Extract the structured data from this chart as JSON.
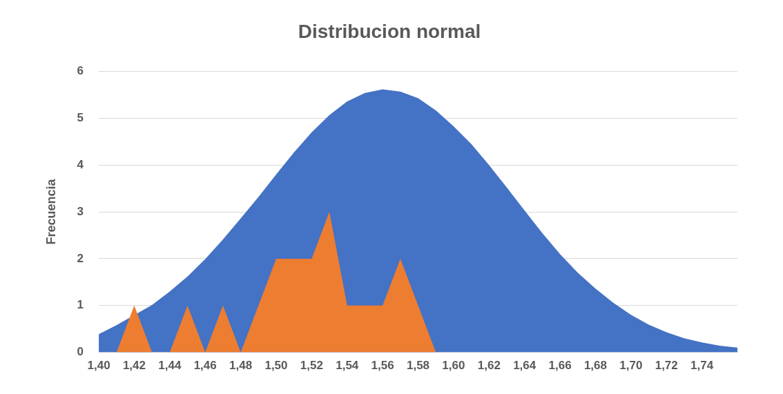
{
  "chart_data": {
    "type": "area",
    "title": "Distribucion normal",
    "ylabel": "Frecuencia",
    "categories": [
      "1,40",
      null,
      "1,42",
      null,
      "1,44",
      null,
      "1,46",
      null,
      "1,48",
      null,
      "1,50",
      null,
      "1,52",
      null,
      "1,54",
      null,
      "1,56",
      null,
      "1,58",
      null,
      "1,60",
      null,
      "1,62",
      null,
      "1,64",
      null,
      "1,66",
      null,
      "1,68",
      null,
      "1,70",
      null,
      "1,72",
      null,
      "1,74",
      null,
      null
    ],
    "series": [
      {
        "color": "#4472c4",
        "values": [
          0.39,
          0.58,
          null,
          1.01,
          1.3,
          1.62,
          1.99,
          2.41,
          2.86,
          3.32,
          3.8,
          4.27,
          4.7,
          5.07,
          5.36,
          5.54,
          5.62,
          5.57,
          5.43,
          5.17,
          4.83,
          4.45,
          4.0,
          3.52,
          3.03,
          2.55,
          2.1,
          1.7,
          1.36,
          1.06,
          0.8,
          0.59,
          0.43,
          0.3,
          0.21,
          0.14,
          0.1
        ]
      },
      {
        "color": "#ed7d31",
        "values": [
          null,
          0,
          1,
          0,
          0,
          1,
          0,
          1,
          0,
          1,
          2,
          2,
          2,
          3,
          1,
          1,
          1,
          2,
          1,
          0,
          null,
          null,
          null,
          null,
          null,
          null,
          null,
          null,
          null,
          null,
          null,
          null,
          null,
          null,
          null,
          null,
          null
        ]
      }
    ],
    "ylim": [
      0,
      6
    ],
    "yticks": [
      0,
      1,
      2,
      3,
      4,
      5,
      6
    ],
    "grid": "y",
    "legend": false
  }
}
